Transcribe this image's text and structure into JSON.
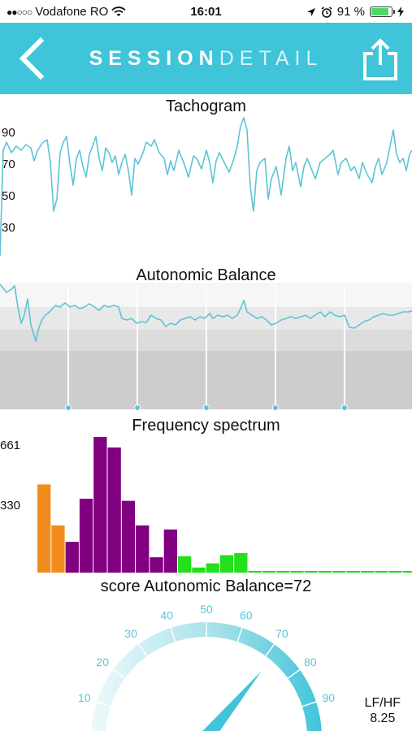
{
  "status_bar": {
    "carrier": "Vodafone RO",
    "time": "16:01",
    "battery": "91 %",
    "battery_level": 0.91
  },
  "nav": {
    "title_part1": "SESSION",
    "title_part2": "DETAIL",
    "back_icon": "chevron-left-icon",
    "share_icon": "share-icon"
  },
  "tachogram": {
    "title": "Tachogram",
    "y_ticks": [
      "90",
      "70",
      "50",
      "30"
    ],
    "color": "#5bc4d6"
  },
  "autonomic_balance": {
    "title": "Autonomic Balance",
    "color": "#5bc4d6"
  },
  "chart_data": {
    "type": "bar",
    "title": "Frequency spectrum",
    "y_ticks": [
      "661",
      "330"
    ],
    "ylim": [
      0,
      661
    ],
    "values": [
      430,
      230,
      150,
      360,
      661,
      610,
      350,
      230,
      75,
      210,
      80,
      25,
      45,
      85,
      95,
      8,
      8,
      8,
      8,
      8,
      8,
      8,
      8,
      8,
      8,
      8,
      8,
      8,
      8,
      8
    ],
    "bands": [
      "vlf",
      "vlf",
      "lf",
      "lf",
      "lf",
      "lf",
      "lf",
      "lf",
      "lf",
      "lf",
      "hf",
      "hf",
      "hf",
      "hf",
      "hf",
      "hf",
      "hf",
      "hf",
      "hf",
      "hf",
      "hf",
      "hf",
      "hf",
      "hf",
      "hf",
      "hf",
      "hf",
      "hf",
      "hf",
      "hf"
    ],
    "colors": {
      "vlf": "#f28c1c",
      "lf": "#800080",
      "hf": "#22e01a"
    }
  },
  "gauge": {
    "title": "score Autonomic Balance=72",
    "score": 72,
    "ticks": [
      "10",
      "20",
      "30",
      "40",
      "50",
      "60",
      "70",
      "80",
      "90"
    ],
    "color": "#3fc4d9",
    "lfhf_label": "LF/HF",
    "lfhf_value": "8.25"
  }
}
